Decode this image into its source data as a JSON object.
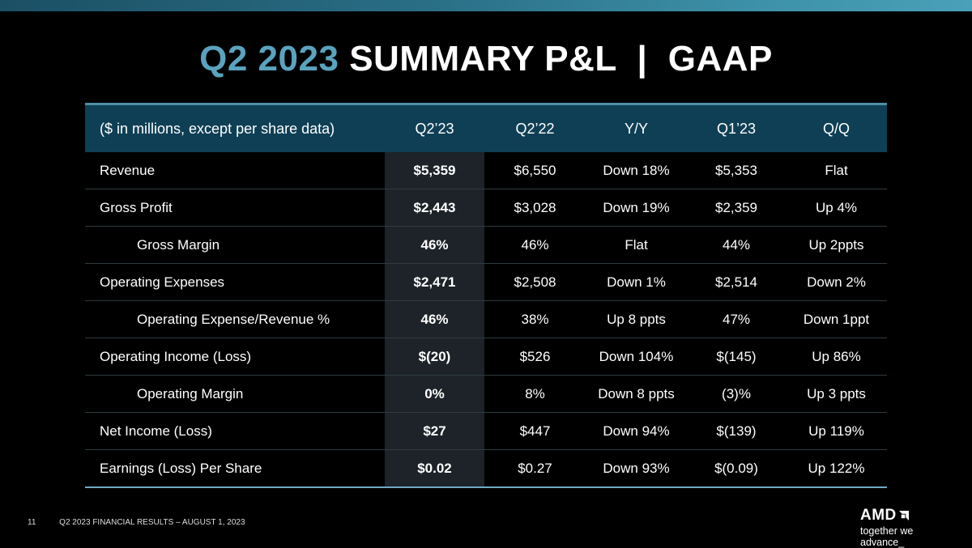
{
  "title": {
    "accent": "Q2 2023",
    "main": "SUMMARY P&L  |  GAAP"
  },
  "table": {
    "headers": [
      "($ in millions, except per share data)",
      "Q2’23",
      "Q2’22",
      "Y/Y",
      "Q1’23",
      "Q/Q"
    ],
    "rows": [
      [
        "Revenue",
        "$5,359",
        "$6,550",
        "Down 18%",
        "$5,353",
        "Flat"
      ],
      [
        "Gross Profit",
        "$2,443",
        "$3,028",
        "Down 19%",
        "$2,359",
        "Up 4%"
      ],
      [
        "Gross Margin",
        "46%",
        "46%",
        "Flat",
        "44%",
        "Up 2ppts"
      ],
      [
        "Operating Expenses",
        "$2,471",
        "$2,508",
        "Down 1%",
        "$2,514",
        "Down 2%"
      ],
      [
        "Operating Expense/Revenue %",
        "46%",
        "38%",
        "Up 8 ppts",
        "47%",
        "Down 1ppt"
      ],
      [
        "Operating Income (Loss)",
        "$(20)",
        "$526",
        "Down 104%",
        "$(145)",
        "Up 86%"
      ],
      [
        "Operating Margin",
        "0%",
        "8%",
        "Down 8 ppts",
        "(3)%",
        "Up 3 ppts"
      ],
      [
        "Net Income (Loss)",
        "$27",
        "$447",
        "Down 94%",
        "$(139)",
        "Up 119%"
      ],
      [
        "Earnings (Loss) Per Share",
        "$0.02",
        "$0.27",
        "Down 93%",
        "$(0.09)",
        "Up 122%"
      ]
    ]
  },
  "footer": {
    "page": "11",
    "text": "Q2 2023 FINANCIAL RESULTS – AUGUST 1, 2023"
  },
  "logo": {
    "brand": "AMD",
    "tagline": "together we advance_"
  },
  "colors": {
    "accent": "#5aa3be",
    "header_bg": "#0f3f55",
    "highlight_col": "#1d2328"
  }
}
